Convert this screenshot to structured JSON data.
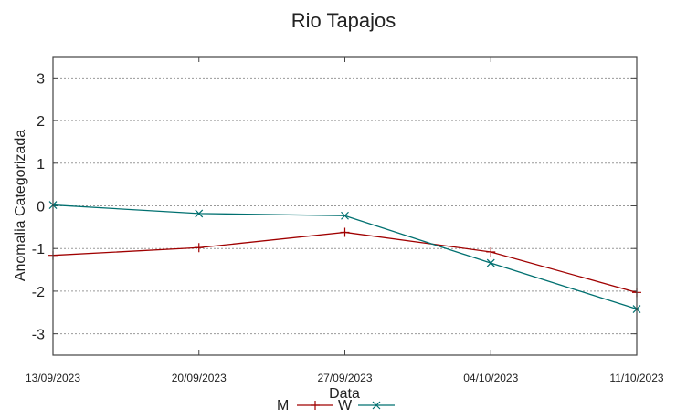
{
  "chart_data": {
    "type": "line",
    "title": "Rio Tapajos",
    "xlabel": "Data",
    "ylabel": "Anomalia Categorizada",
    "categories": [
      "13/09/2023",
      "20/09/2023",
      "27/09/2023",
      "04/10/2023",
      "11/10/2023"
    ],
    "yticks": [
      3,
      2,
      1,
      0,
      -1,
      -2,
      -3
    ],
    "ylim": [
      -3.5,
      3.5
    ],
    "grid": true,
    "legend_position": "bottom-center",
    "series": [
      {
        "name": "M",
        "color": "#a00000",
        "marker": "plus",
        "values": [
          -1.16,
          -0.98,
          -0.62,
          -1.08,
          -2.03
        ]
      },
      {
        "name": "W",
        "color": "#007070",
        "marker": "cross",
        "values": [
          0.02,
          -0.18,
          -0.23,
          -1.34,
          -2.42
        ]
      }
    ]
  }
}
